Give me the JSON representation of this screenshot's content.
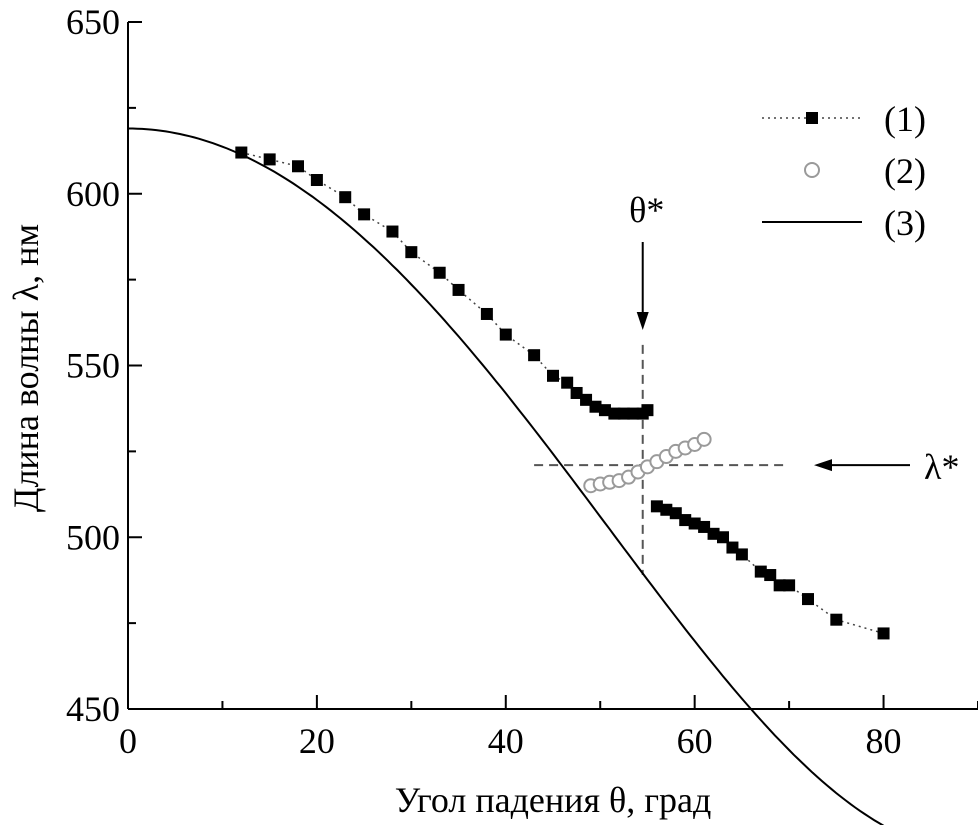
{
  "chart_data": {
    "type": "scatter",
    "xlabel": "Угол падения θ, град",
    "ylabel": "Длина волны λ, нм",
    "xlim": [
      0,
      90
    ],
    "ylim": [
      450,
      650
    ],
    "x_ticks": [
      0,
      20,
      40,
      60,
      80
    ],
    "y_ticks": [
      450,
      500,
      550,
      600,
      650
    ],
    "x_tick_labels": [
      "0",
      "20",
      "40",
      "60",
      "80"
    ],
    "y_tick_labels": [
      "450",
      "500",
      "550",
      "600",
      "650"
    ],
    "grid": false,
    "legend_position": "top-right",
    "series": [
      {
        "name": "(1)",
        "marker": "filled-square",
        "line": "dotted",
        "color": "#000000",
        "points": [
          [
            12,
            612
          ],
          [
            15,
            610
          ],
          [
            18,
            608
          ],
          [
            20,
            604
          ],
          [
            23,
            599
          ],
          [
            25,
            594
          ],
          [
            28,
            589
          ],
          [
            30,
            583
          ],
          [
            33,
            577
          ],
          [
            35,
            572
          ],
          [
            38,
            565
          ],
          [
            40,
            559
          ],
          [
            43,
            553
          ],
          [
            45,
            547
          ],
          [
            46.5,
            545
          ],
          [
            47.5,
            542
          ],
          [
            48.5,
            540
          ],
          [
            49.5,
            538
          ],
          [
            50.5,
            537
          ],
          [
            51.5,
            536
          ],
          [
            52.5,
            536
          ],
          [
            53.5,
            536
          ],
          [
            54.5,
            536
          ],
          [
            55,
            537
          ],
          [
            56,
            509
          ],
          [
            57,
            508
          ],
          [
            58,
            507
          ],
          [
            59,
            505
          ],
          [
            60,
            504
          ],
          [
            61,
            503
          ],
          [
            62,
            501
          ],
          [
            63,
            500
          ],
          [
            64,
            497
          ],
          [
            65,
            495
          ],
          [
            67,
            490
          ],
          [
            68,
            489
          ],
          [
            69,
            486
          ],
          [
            70,
            486
          ],
          [
            72,
            482
          ],
          [
            75,
            476
          ],
          [
            80,
            472
          ]
        ]
      },
      {
        "name": "(2)",
        "marker": "open-circle",
        "line": "none",
        "color": "#9a9a9a",
        "points": [
          [
            49,
            515
          ],
          [
            50,
            515.5
          ],
          [
            51,
            516
          ],
          [
            52,
            516.5
          ],
          [
            53,
            517.5
          ],
          [
            54,
            519
          ],
          [
            55,
            520.5
          ],
          [
            56,
            522
          ],
          [
            57,
            523.5
          ],
          [
            58,
            525
          ],
          [
            59,
            526
          ],
          [
            60,
            527
          ],
          [
            61,
            528.5
          ]
        ]
      },
      {
        "name": "(3)",
        "marker": "none",
        "line": "solid",
        "color": "#000000",
        "function": "lambda0*sqrt(1 - sin^2(theta)/n^2)",
        "lambda0": 619,
        "n": 1.33
      }
    ],
    "annotations": {
      "theta_star": {
        "label": "θ*",
        "x": 54.5
      },
      "lambda_star": {
        "label": "λ*",
        "y": 521
      }
    }
  }
}
